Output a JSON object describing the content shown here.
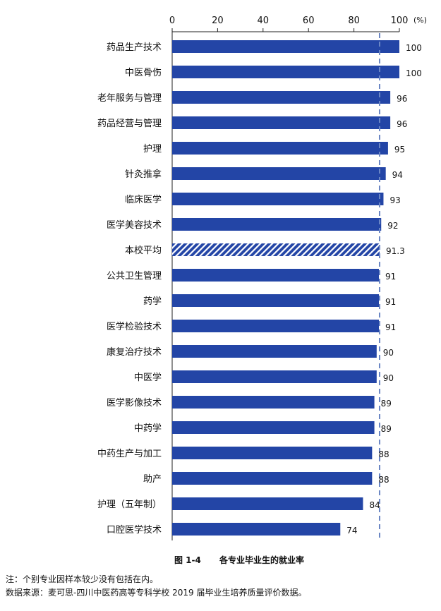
{
  "chart_data": {
    "type": "bar",
    "orientation": "horizontal",
    "title": "各专业毕业生的就业率",
    "figure_label": "图 1-4",
    "unit_label": "(%)",
    "xlim": [
      0,
      100
    ],
    "x_ticks": [
      0,
      20,
      40,
      60,
      80,
      100
    ],
    "reference_line": {
      "value": 91.3
    },
    "highlight_category": "本校平均",
    "categories": [
      "药品生产技术",
      "中医骨伤",
      "老年服务与管理",
      "药品经营与管理",
      "护理",
      "针灸推拿",
      "临床医学",
      "医学美容技术",
      "本校平均",
      "公共卫生管理",
      "药学",
      "医学检验技术",
      "康复治疗技术",
      "中医学",
      "医学影像技术",
      "中药学",
      "中药生产与加工",
      "助产",
      "护理（五年制）",
      "口腔医学技术"
    ],
    "values": [
      100,
      100,
      96,
      96,
      95,
      94,
      93,
      92,
      91.3,
      91,
      91,
      91,
      90,
      90,
      89,
      89,
      88,
      88,
      84,
      74
    ],
    "bar_color": "#2345a6",
    "highlight_pattern": "diagonal-stripes"
  },
  "notes": [
    "注：个别专业因样本较少没有包括在内。",
    "数据来源：麦可思-四川中医药高等专科学校 2019 届毕业生培养质量评价数据。"
  ]
}
